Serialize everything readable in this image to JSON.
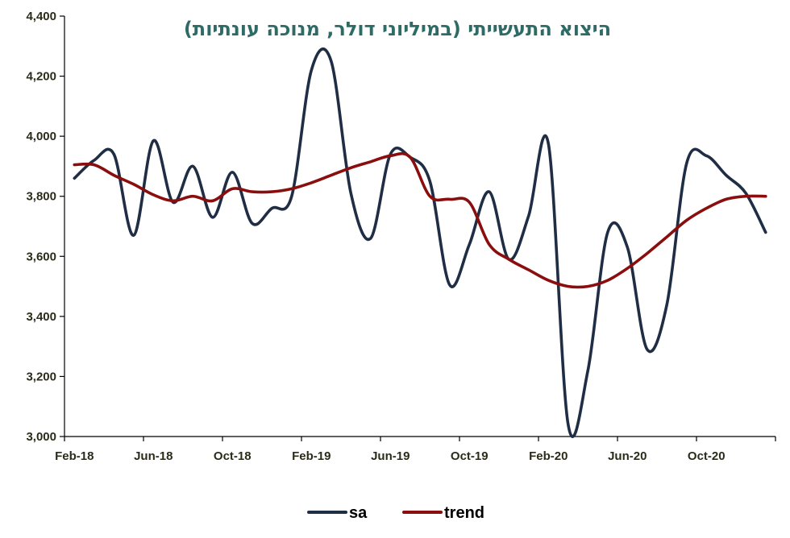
{
  "chart_data": {
    "type": "line",
    "title": "היצוא התעשייתי (במיליוני דולר, מנוכה עונתיות)",
    "xlabel": "",
    "ylabel": "",
    "ylim": [
      3000,
      4400
    ],
    "yticks": [
      3000,
      3200,
      3400,
      3600,
      3800,
      4000,
      4200,
      4400
    ],
    "ytick_labels": [
      "3,000",
      "3,200",
      "3,400",
      "3,600",
      "3,800",
      "4,000",
      "4,200",
      "4,400"
    ],
    "x": [
      "Feb-18",
      "Mar-18",
      "Apr-18",
      "May-18",
      "Jun-18",
      "Jul-18",
      "Aug-18",
      "Sep-18",
      "Oct-18",
      "Nov-18",
      "Dec-18",
      "Jan-19",
      "Feb-19",
      "Mar-19",
      "Apr-19",
      "May-19",
      "Jun-19",
      "Jul-19",
      "Aug-19",
      "Sep-19",
      "Oct-19",
      "Nov-19",
      "Dec-19",
      "Jan-20",
      "Feb-20",
      "Mar-20",
      "Apr-20",
      "May-20",
      "Jun-20",
      "Jul-20",
      "Aug-20",
      "Sep-20",
      "Oct-20",
      "Nov-20",
      "Dec-20",
      "Jan-21"
    ],
    "xtick_labels": [
      "Feb-18",
      "Jun-18",
      "Oct-18",
      "Feb-19",
      "Jun-19",
      "Oct-19",
      "Feb-20",
      "Jun-20",
      "Oct-20"
    ],
    "xtick_every": 4,
    "grid": false,
    "legend_position": "bottom",
    "series": [
      {
        "name": "sa",
        "color": "#1f2d45",
        "values": [
          3860,
          3920,
          3940,
          3670,
          3985,
          3780,
          3900,
          3730,
          3880,
          3710,
          3760,
          3800,
          4220,
          4250,
          3810,
          3660,
          3940,
          3930,
          3850,
          3505,
          3640,
          3815,
          3590,
          3735,
          3975,
          3040,
          3220,
          3680,
          3630,
          3290,
          3440,
          3910,
          3935,
          3870,
          3810,
          3680
        ]
      },
      {
        "name": "trend",
        "color": "#8a0e0e",
        "values": [
          3905,
          3905,
          3870,
          3840,
          3805,
          3785,
          3800,
          3785,
          3825,
          3815,
          3815,
          3825,
          3845,
          3870,
          3895,
          3915,
          3935,
          3930,
          3800,
          3790,
          3780,
          3640,
          3590,
          3555,
          3520,
          3500,
          3500,
          3520,
          3560,
          3610,
          3665,
          3720,
          3760,
          3790,
          3800,
          3800
        ]
      }
    ]
  }
}
